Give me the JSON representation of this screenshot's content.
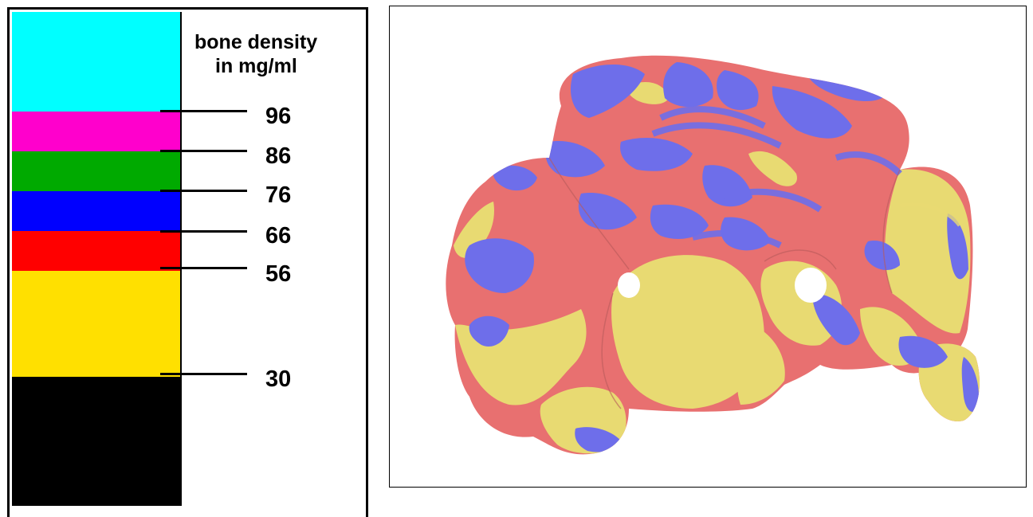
{
  "legend": {
    "title_line1": "bone density",
    "title_line2": "in mg/ml",
    "bands": [
      {
        "name": "cyan",
        "color": "#00FFFF"
      },
      {
        "name": "magenta",
        "color": "#FF00CC"
      },
      {
        "name": "green",
        "color": "#00AA00"
      },
      {
        "name": "blue",
        "color": "#0000FF"
      },
      {
        "name": "red",
        "color": "#FF0000"
      },
      {
        "name": "yellow",
        "color": "#FFE000"
      },
      {
        "name": "black",
        "color": "#000000"
      }
    ],
    "thresholds": [
      "96",
      "86",
      "76",
      "66",
      "56",
      "30"
    ]
  },
  "render": {
    "description_colors": {
      "low_density": "#E8DA72",
      "mid_density": "#E87070",
      "high_density": "#6E6EEA"
    }
  }
}
